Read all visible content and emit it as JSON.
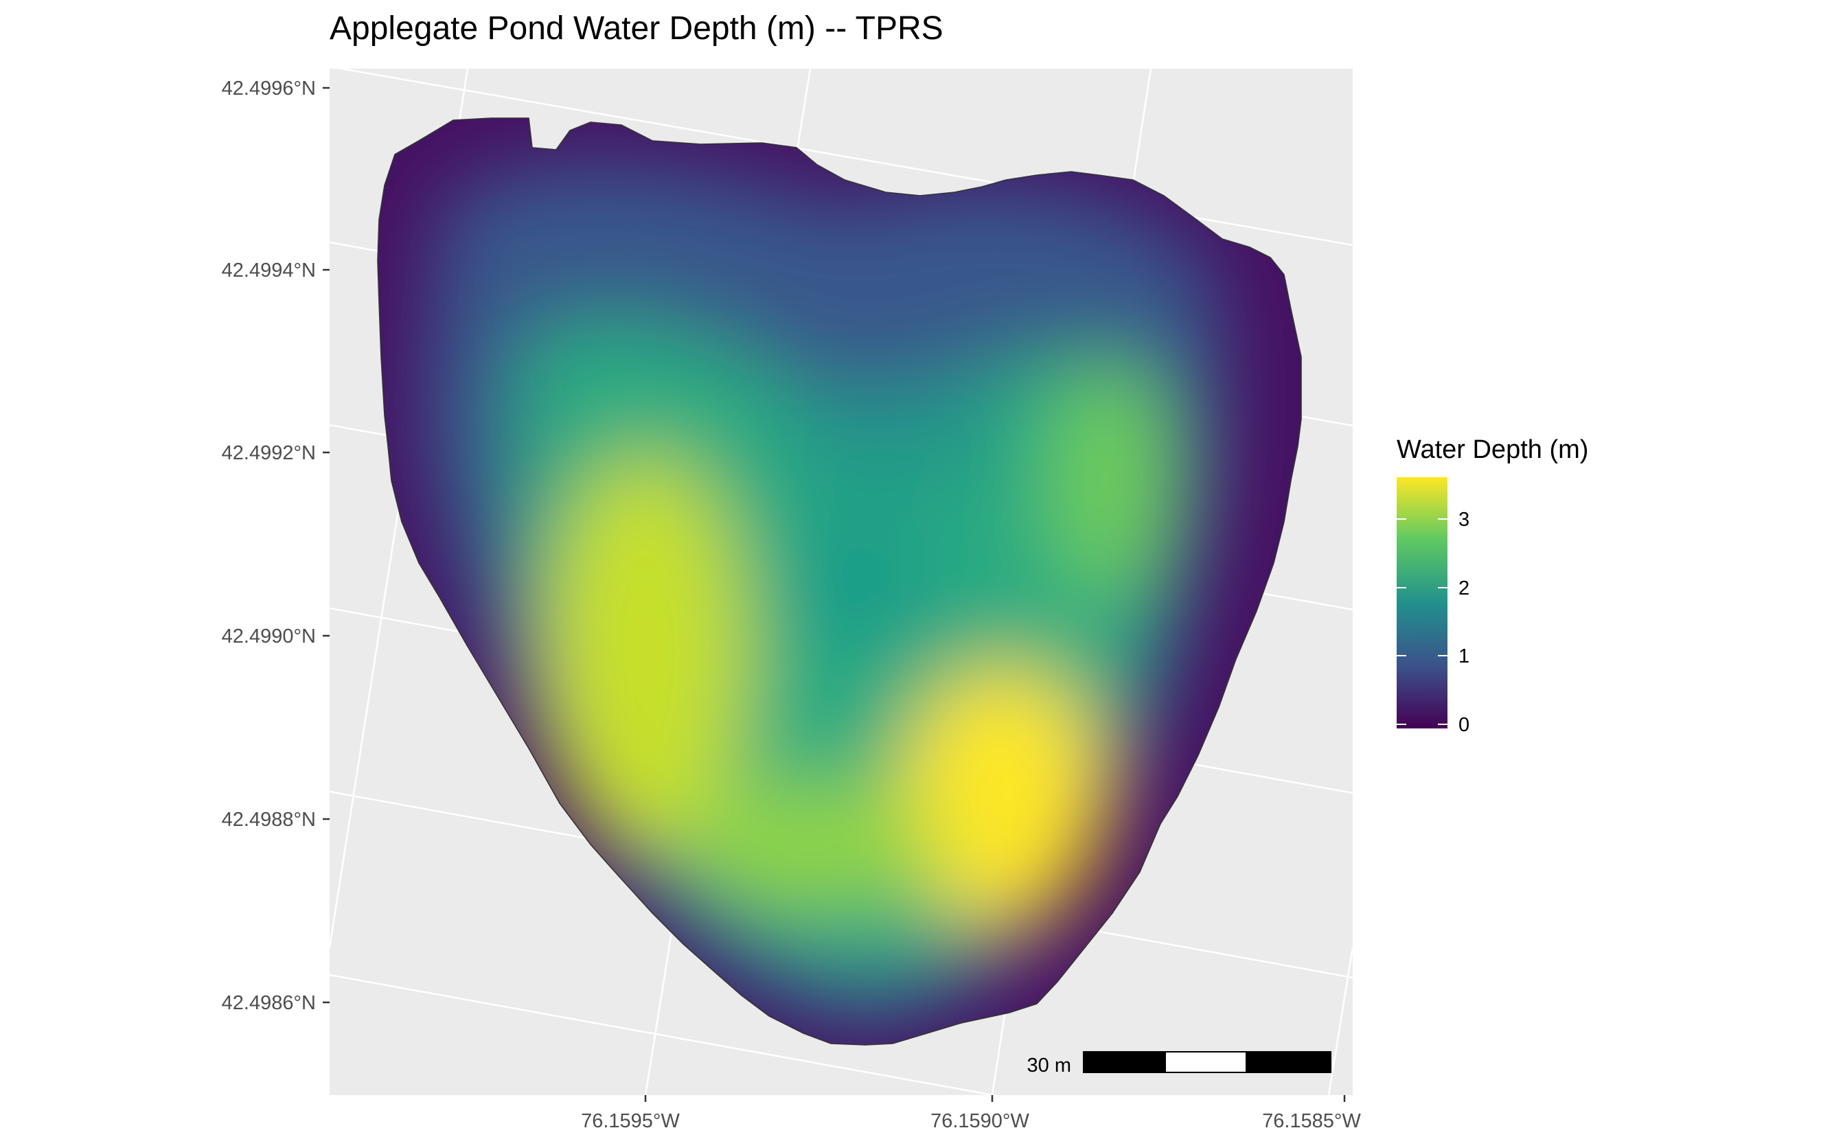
{
  "title": "Applegate Pond Water Depth (m) -- TPRS",
  "map": {
    "background_color": "#ebebeb",
    "graticule_color": "#ffffff",
    "outline_color": "#333333",
    "latitude_labels": [
      "42.4996°N",
      "42.4994°N",
      "42.4992°N",
      "42.4990°N",
      "42.4988°N",
      "42.4986°N"
    ],
    "longitude_labels": [
      "76.1595°W",
      "76.1590°W",
      "76.1585°W"
    ],
    "depth_field": {
      "variable": "Water Depth (m)",
      "min_depth": 0,
      "max_depth": 3.6,
      "deep_zones": [
        {
          "name": "west lobe",
          "max_depth": 3.3
        },
        {
          "name": "southeast lobe",
          "max_depth": 3.6
        },
        {
          "name": "northeast lobe",
          "max_depth": 2.8
        },
        {
          "name": "central north",
          "max_depth": 1.9
        }
      ]
    }
  },
  "legend": {
    "title": "Water Depth (m)",
    "labels": [
      "3",
      "2",
      "1",
      "0"
    ],
    "colors": [
      "#fde725",
      "#5ec962",
      "#21918c",
      "#3b528b",
      "#440154"
    ]
  },
  "scale_bar": {
    "label": "30 m",
    "fill_colors": [
      "#000000",
      "#ffffff",
      "#000000"
    ]
  }
}
